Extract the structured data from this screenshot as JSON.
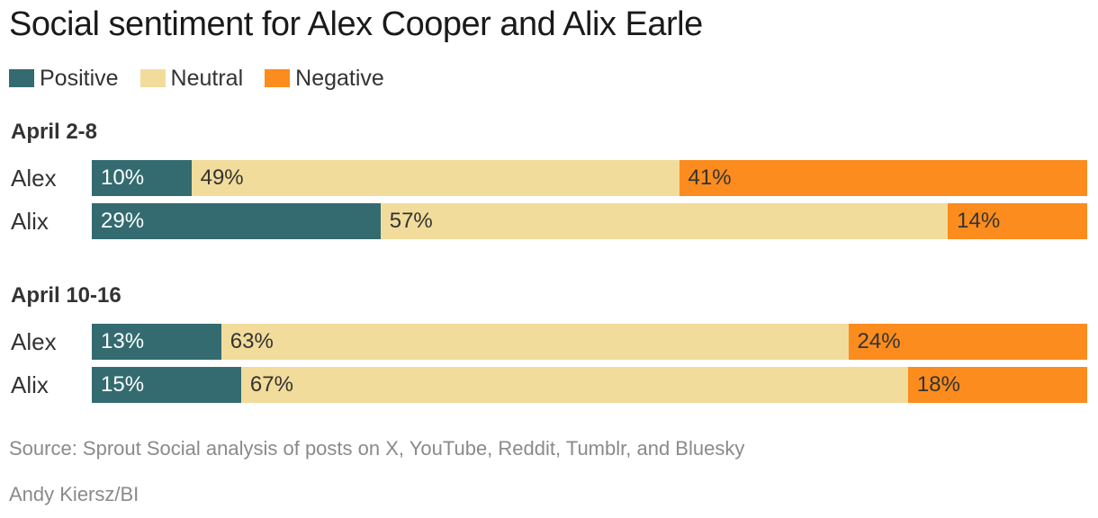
{
  "chart_data": {
    "type": "bar",
    "stacked": true,
    "orientation": "horizontal",
    "title": "Social sentiment for Alex Cooper and Alix Earle",
    "legend": [
      {
        "name": "Positive",
        "color": "#336b70"
      },
      {
        "name": "Neutral",
        "color": "#f2dc9b"
      },
      {
        "name": "Negative",
        "color": "#fb8c1d"
      }
    ],
    "groups": [
      {
        "label": "April 2-8",
        "rows": [
          {
            "label": "Alex",
            "values": [
              10,
              49,
              41
            ],
            "labels": [
              "10%",
              "49%",
              "41%"
            ]
          },
          {
            "label": "Alix",
            "values": [
              29,
              57,
              14
            ],
            "labels": [
              "29%",
              "57%",
              "14%"
            ]
          }
        ]
      },
      {
        "label": "April 10-16",
        "rows": [
          {
            "label": "Alex",
            "values": [
              13,
              63,
              24
            ],
            "labels": [
              "13%",
              "63%",
              "24%"
            ]
          },
          {
            "label": "Alix",
            "values": [
              15,
              67,
              18
            ],
            "labels": [
              "15%",
              "67%",
              "18%"
            ]
          }
        ]
      }
    ],
    "source": "Source: Sprout Social analysis of posts on X, YouTube, Reddit, Tumblr, and Bluesky",
    "credit": "Andy Kiersz/BI"
  }
}
